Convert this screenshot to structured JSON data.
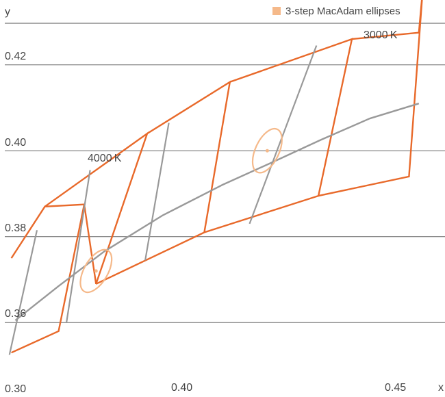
{
  "chart_data": {
    "type": "line",
    "title": "",
    "xlabel": "x",
    "ylabel": "y",
    "x_tick_labels": [
      "0.30",
      "0.40",
      "0.45"
    ],
    "y_tick_labels": [
      "0.42",
      "0.40",
      "0.38",
      "0.36"
    ],
    "grid": "horizontal",
    "legend": {
      "placement": "top-right",
      "entries": [
        {
          "label": "3-step MacAdam ellipses",
          "color": "#f5b98a"
        }
      ]
    },
    "colors": {
      "bins": "#e8692a",
      "isotherms": "#999999",
      "locus": "#999999",
      "ellipses": "#f5b98a",
      "grid": "#666666"
    },
    "cct_labels": [
      {
        "text": "3000 K",
        "x": 0.434,
        "y": 0.4245
      },
      {
        "text": "4000 K",
        "x": 0.38,
        "y": 0.3965
      }
    ],
    "planckian_locus": {
      "name": "",
      "points": [
        [
          0.3575,
          0.3605
        ],
        [
          0.3685,
          0.3685
        ],
        [
          0.38,
          0.3765
        ],
        [
          0.395,
          0.385
        ],
        [
          0.41,
          0.392
        ],
        [
          0.422,
          0.397
        ],
        [
          0.435,
          0.4025
        ],
        [
          0.4475,
          0.4075
        ],
        [
          0.46,
          0.411
        ]
      ]
    },
    "isotherms": [
      [
        [
          0.356,
          0.3525
        ],
        [
          0.363,
          0.3815
        ]
      ],
      [
        [
          0.3705,
          0.36
        ],
        [
          0.3765,
          0.3955
        ]
      ],
      [
        [
          0.3905,
          0.3745
        ],
        [
          0.3965,
          0.4065
        ]
      ],
      [
        [
          0.417,
          0.383
        ],
        [
          0.434,
          0.4245
        ]
      ]
    ],
    "ansi_bins": [
      [
        [
          0.3565,
          0.375
        ],
        [
          0.365,
          0.387
        ],
        [
          0.375,
          0.3875
        ],
        [
          0.3685,
          0.358
        ],
        [
          0.3565,
          0.353
        ]
      ],
      [
        [
          0.365,
          0.387
        ],
        [
          0.391,
          0.404
        ],
        [
          0.378,
          0.369
        ],
        [
          0.375,
          0.3875
        ]
      ],
      [
        [
          0.391,
          0.404
        ],
        [
          0.412,
          0.416
        ],
        [
          0.4055,
          0.381
        ],
        [
          0.378,
          0.369
        ]
      ],
      [
        [
          0.412,
          0.416
        ],
        [
          0.443,
          0.426
        ],
        [
          0.4345,
          0.3895
        ],
        [
          0.4055,
          0.381
        ]
      ],
      [
        [
          0.443,
          0.426
        ],
        [
          0.46,
          0.4275
        ],
        [
          0.461,
          0.4375
        ],
        [
          0.4575,
          0.394
        ],
        [
          0.4345,
          0.3895
        ]
      ]
    ],
    "macadam_ellipses": [
      {
        "center": [
          0.378,
          0.372
        ],
        "semi_axes": [
          0.003,
          0.0055
        ],
        "rotation_deg": 30
      },
      {
        "center": [
          0.4215,
          0.4
        ],
        "semi_axes": [
          0.003,
          0.0055
        ],
        "rotation_deg": 25
      }
    ],
    "xlim": [
      0.355,
      0.465
    ],
    "ylim": [
      0.35,
      0.43
    ]
  }
}
